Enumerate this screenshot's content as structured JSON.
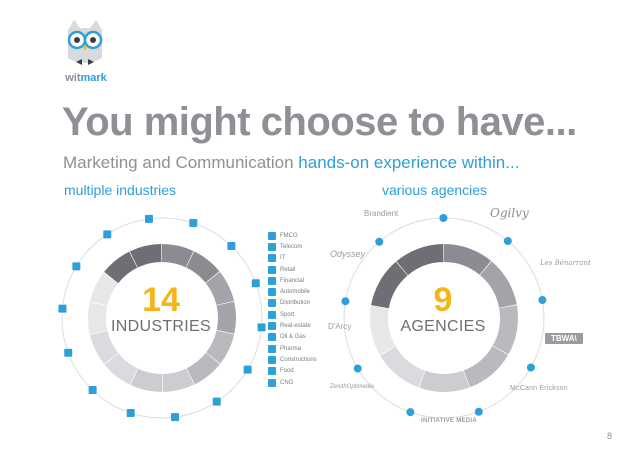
{
  "logo": {
    "text_a": "wit",
    "text_b": "mark"
  },
  "title": "You might choose to have...",
  "subtitle": {
    "plain": "Marketing and Communication ",
    "highlight": "hands-on experience within..."
  },
  "sections": {
    "left": "multiple industries",
    "right": "various agencies"
  },
  "industries": {
    "count": "14",
    "caption": "INDUSTRIES",
    "items": [
      "FMCG",
      "Telecom",
      "IT",
      "Retail",
      "Financial",
      "Automobile",
      "Distribution",
      "Sport",
      "Real-estate",
      "Oil & Gas",
      "Pharma",
      "Constructions",
      "Food",
      "CNG"
    ]
  },
  "agencies": {
    "count": "9",
    "caption": "AGENCIES",
    "names": {
      "brandient": "Brandient",
      "ogilvy": "Ogilvy",
      "lesbenarrant": "Les Bénarrant",
      "tbwa": "TBWA\\",
      "mccann": "McCann Erickson",
      "initiative": "INITIATIVE MEDIA",
      "zenith": "ZenithOptimedia",
      "darcy": "D'Arcy",
      "odyssey": "Odyssey"
    }
  },
  "page_number": "8",
  "colors": {
    "accent_blue": "#2d9fd9",
    "accent_yellow": "#f4b41a",
    "gray_text": "#8e9096"
  }
}
